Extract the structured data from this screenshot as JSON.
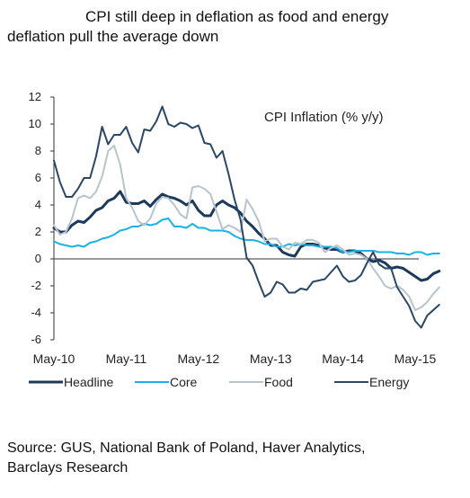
{
  "header": {
    "title_line1": "CPI still deep in deflation as food and energy",
    "title_line2": "deflation pull the average down"
  },
  "footer": {
    "source_line1": "Source: GUS, National Bank of Poland, Haver Analytics,",
    "source_line2": "Barclays Research"
  },
  "chart_data": {
    "type": "line",
    "title": "CPI Inflation  (% y/y)",
    "xlabel": "",
    "ylabel": "",
    "ylim": [
      -6,
      12
    ],
    "yticks": [
      12,
      10,
      8,
      6,
      4,
      2,
      0,
      -2,
      -4,
      -6
    ],
    "x_start": "2010-05",
    "xtick_labels": [
      "May-10",
      "May-11",
      "May-12",
      "May-13",
      "May-14",
      "May-15"
    ],
    "grid": false,
    "legend_position": "bottom",
    "series": [
      {
        "name": "Headline",
        "color": "#1b3a5c",
        "values": [
          2.3,
          2.0,
          2.0,
          2.5,
          2.8,
          2.7,
          3.1,
          3.6,
          3.8,
          4.3,
          4.5,
          5.0,
          4.2,
          4.1,
          4.1,
          4.3,
          3.9,
          4.4,
          4.8,
          4.6,
          4.5,
          4.3,
          4.0,
          4.3,
          3.6,
          3.2,
          3.2,
          4.0,
          4.3,
          4.0,
          3.8,
          3.4,
          2.8,
          2.4,
          1.9,
          1.5,
          1.0,
          1.0,
          0.5,
          0.3,
          0.2,
          0.9,
          1.1,
          1.1,
          1.0,
          0.8,
          0.7,
          0.7,
          0.5,
          0.6,
          0.6,
          0.4,
          0.0,
          -0.2,
          -0.1,
          -0.3,
          -0.7,
          -0.6,
          -0.7,
          -1.0,
          -1.3,
          -1.6,
          -1.5,
          -1.1,
          -0.9
        ]
      },
      {
        "name": "Core",
        "color": "#1ab2e6",
        "values": [
          1.3,
          1.1,
          1.0,
          0.9,
          1.0,
          0.9,
          1.2,
          1.3,
          1.5,
          1.6,
          1.8,
          2.1,
          2.2,
          2.4,
          2.4,
          2.6,
          2.5,
          2.6,
          2.9,
          3.0,
          2.4,
          2.4,
          2.3,
          2.6,
          2.3,
          2.3,
          2.1,
          2.1,
          2.1,
          2.0,
          1.7,
          1.5,
          1.4,
          1.4,
          1.3,
          1.1,
          1.1,
          0.9,
          0.9,
          1.1,
          1.0,
          1.1,
          1.0,
          1.0,
          0.9,
          0.9,
          0.9,
          0.8,
          0.5,
          0.5,
          0.6,
          0.6,
          0.6,
          0.6,
          0.5,
          0.5,
          0.5,
          0.4,
          0.4,
          0.3,
          0.5,
          0.5,
          0.3,
          0.4,
          0.4
        ]
      },
      {
        "name": "Food",
        "color": "#b8c4cc",
        "values": [
          2.5,
          1.8,
          2.0,
          3.0,
          4.5,
          4.7,
          4.5,
          5.0,
          6.1,
          8.0,
          8.4,
          7.0,
          4.5,
          3.8,
          2.8,
          2.5,
          3.0,
          4.1,
          4.6,
          4.5,
          4.0,
          3.3,
          3.0,
          5.3,
          5.4,
          5.2,
          4.8,
          3.5,
          2.2,
          2.5,
          2.3,
          2.0,
          4.4,
          3.7,
          2.8,
          1.3,
          1.5,
          1.5,
          0.9,
          0.7,
          1.2,
          1.1,
          1.4,
          1.4,
          1.2,
          0.5,
          0.8,
          1.0,
          0.7,
          0.3,
          0.4,
          0.3,
          0.0,
          -0.7,
          -1.3,
          -2.0,
          -2.2,
          -2.0,
          -2.3,
          -2.8,
          -3.8,
          -3.6,
          -3.2,
          -2.6,
          -2.1
        ]
      },
      {
        "name": "Energy",
        "color": "#2a4766",
        "values": [
          7.3,
          5.7,
          4.6,
          4.6,
          5.2,
          6.0,
          6.0,
          7.6,
          9.8,
          8.5,
          9.2,
          9.2,
          9.8,
          8.6,
          7.9,
          9.6,
          9.5,
          10.2,
          11.3,
          10.0,
          9.8,
          10.1,
          10.0,
          9.7,
          9.9,
          8.6,
          8.5,
          7.5,
          8.0,
          6.3,
          4.4,
          2.9,
          0.1,
          -0.5,
          -1.7,
          -2.8,
          -2.5,
          -1.7,
          -1.9,
          -2.5,
          -2.5,
          -2.2,
          -2.3,
          -1.7,
          -1.6,
          -1.5,
          -1.0,
          -0.5,
          -1.3,
          -1.7,
          -1.6,
          -1.2,
          -0.3,
          0.5,
          -0.4,
          -0.7,
          -0.7,
          -2.1,
          -2.8,
          -3.5,
          -4.6,
          -5.1,
          -4.2,
          -3.8,
          -3.4
        ]
      }
    ]
  }
}
